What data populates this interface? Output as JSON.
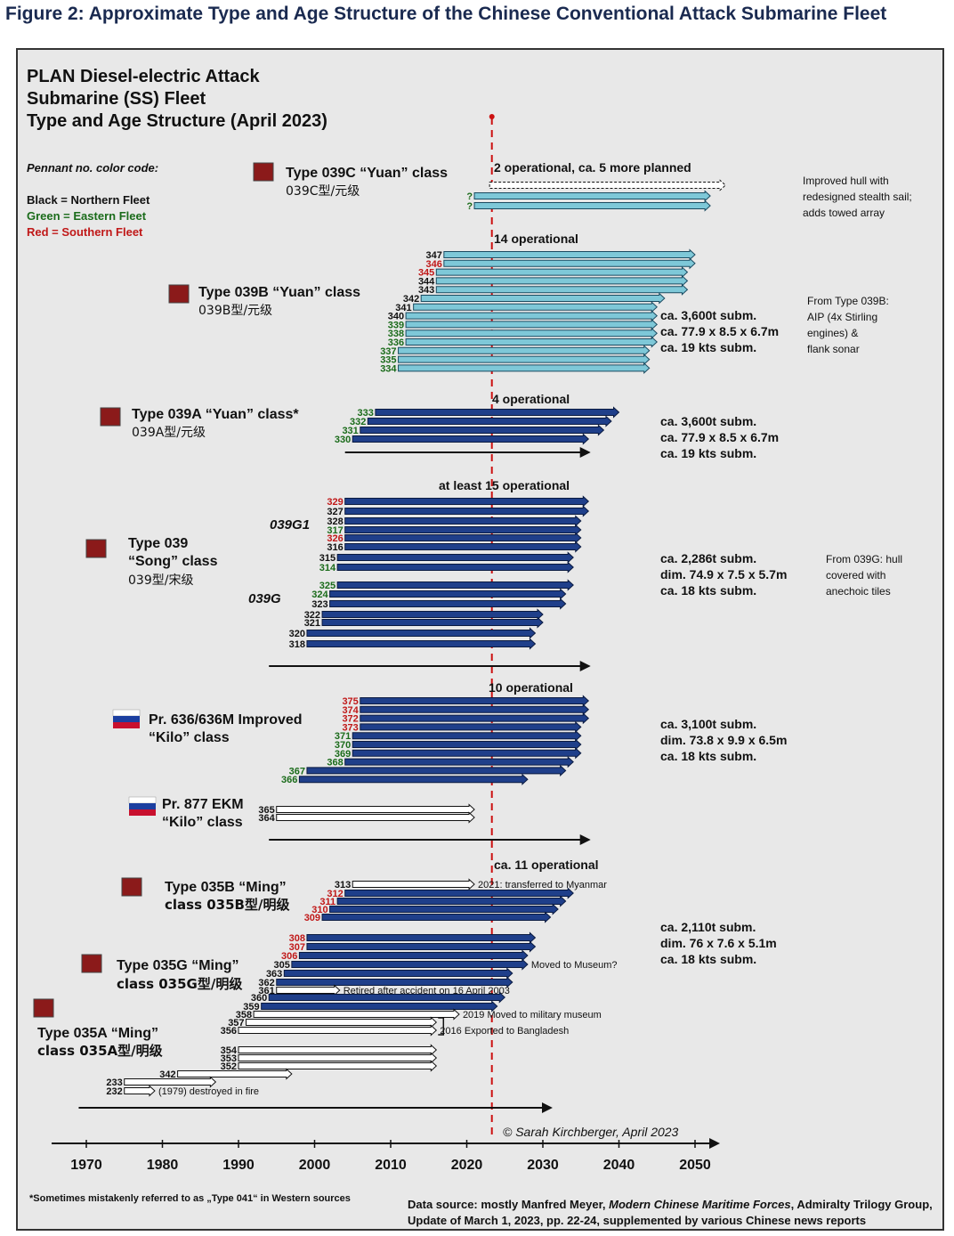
{
  "figure_title": "Figure 2: Approximate Type and Age Structure of the Chinese Conventional Attack Submarine Fleet",
  "chart_title": [
    "PLAN Diesel-electric Attack",
    "Submarine (SS) Fleet",
    "Type and Age Structure (April 2023)"
  ],
  "legend": {
    "heading": "Pennant no. color code:",
    "items": [
      {
        "label": "Black = Northern Fleet",
        "color": "#111111"
      },
      {
        "label": "Green = Eastern Fleet",
        "color": "#1a6b1a"
      },
      {
        "label": "Red = Southern Fleet",
        "color": "#c01818"
      }
    ]
  },
  "colors": {
    "northern": "#111111",
    "eastern": "#1a6b1a",
    "southern": "#c01818",
    "light_bar": "#7ec8d8",
    "dark_bar": "#1f3f8a",
    "mid_bar": "#2a5aa8",
    "now_line": "#cc1111"
  },
  "chart_data": {
    "type": "timeline",
    "xlim": [
      1965,
      2052
    ],
    "x_ticks": [
      1970,
      1980,
      1990,
      2000,
      2010,
      2020,
      2030,
      2040,
      2050
    ],
    "now_year": 2023.3,
    "groups": [
      {
        "id": "039c",
        "title": "Type 039C “Yuan” class",
        "subtitle": "039C型/元级",
        "flag": "cn",
        "status": "2 operational, ca. 5 more planned",
        "note": [
          "Improved hull with",
          "redesigned stealth sail;",
          "adds towed array"
        ],
        "specs": [],
        "bars": [
          {
            "label": "",
            "fleet": "n",
            "start": 2023,
            "end": 2054,
            "style": "dashed"
          },
          {
            "label": "?",
            "fleet": "e",
            "start": 2021,
            "end": 2052,
            "style": "light"
          },
          {
            "label": "?",
            "fleet": "e",
            "start": 2021,
            "end": 2052,
            "style": "light"
          }
        ]
      },
      {
        "id": "039b",
        "title": "Type 039B “Yuan” class",
        "subtitle": "039B型/元级",
        "flag": "cn",
        "status": "14 operational",
        "note": [
          "From Type 039B:",
          "AIP (4x Stirling",
          "engines) &",
          "flank sonar"
        ],
        "specs": [
          "ca. 3,600t subm.",
          "ca. 77.9 x 8.5 x 6.7m",
          "ca. 19 kts subm."
        ],
        "bars": [
          {
            "label": "347",
            "fleet": "n",
            "start": 2017,
            "end": 2050,
            "style": "light"
          },
          {
            "label": "346",
            "fleet": "s",
            "start": 2017,
            "end": 2050,
            "style": "light"
          },
          {
            "label": "345",
            "fleet": "s",
            "start": 2016,
            "end": 2049,
            "style": "light"
          },
          {
            "label": "344",
            "fleet": "n",
            "start": 2016,
            "end": 2049,
            "style": "light"
          },
          {
            "label": "343",
            "fleet": "n",
            "start": 2016,
            "end": 2049,
            "style": "light"
          },
          {
            "label": "342",
            "fleet": "n",
            "start": 2014,
            "end": 2046,
            "style": "light"
          },
          {
            "label": "341",
            "fleet": "n",
            "start": 2013,
            "end": 2045,
            "style": "light"
          },
          {
            "label": "340",
            "fleet": "n",
            "start": 2012,
            "end": 2045,
            "style": "light"
          },
          {
            "label": "339",
            "fleet": "e",
            "start": 2012,
            "end": 2045,
            "style": "light"
          },
          {
            "label": "338",
            "fleet": "e",
            "start": 2012,
            "end": 2045,
            "style": "light"
          },
          {
            "label": "336",
            "fleet": "e",
            "start": 2012,
            "end": 2045,
            "style": "light"
          },
          {
            "label": "337",
            "fleet": "e",
            "start": 2011,
            "end": 2044,
            "style": "light"
          },
          {
            "label": "335",
            "fleet": "e",
            "start": 2011,
            "end": 2044,
            "style": "light"
          },
          {
            "label": "334",
            "fleet": "e",
            "start": 2011,
            "end": 2044,
            "style": "light"
          }
        ]
      },
      {
        "id": "039a",
        "title": "Type 039A “Yuan” class*",
        "subtitle": "039A型/元级",
        "flag": "cn",
        "status": "4 operational",
        "note": [],
        "specs": [
          "ca. 3,600t subm.",
          "ca. 77.9 x 8.5 x 6.7m",
          "ca. 19 kts subm."
        ],
        "bars": [
          {
            "label": "333",
            "fleet": "e",
            "start": 2008,
            "end": 2040,
            "style": "dark"
          },
          {
            "label": "332",
            "fleet": "e",
            "start": 2007,
            "end": 2039,
            "style": "dark"
          },
          {
            "label": "331",
            "fleet": "e",
            "start": 2006,
            "end": 2038,
            "style": "dark"
          },
          {
            "label": "330",
            "fleet": "e",
            "start": 2005,
            "end": 2036,
            "style": "dark"
          }
        ],
        "axis": {
          "start": 2004,
          "end": 2036
        }
      },
      {
        "id": "039",
        "title_lines": [
          "Type 039",
          "“Song” class"
        ],
        "subtitle": "039型/宋级",
        "flag": "cn",
        "status": "at least 15 operational",
        "variant_labels": [
          "039G1",
          "039G"
        ],
        "note": [
          "From 039G: hull",
          "covered with",
          "anechoic tiles"
        ],
        "specs": [
          "ca. 2,286t subm.",
          "dim. 74.9 x 7.5 x 5.7m",
          "ca. 18 kts subm."
        ],
        "bars": [
          {
            "label": "329",
            "fleet": "s",
            "start": 2004,
            "end": 2036,
            "style": "dark"
          },
          {
            "label": "327",
            "fleet": "n",
            "start": 2004,
            "end": 2036,
            "style": "dark"
          },
          {
            "label": "328",
            "fleet": "n",
            "start": 2004,
            "end": 2035,
            "style": "dark"
          },
          {
            "label": "317",
            "fleet": "e",
            "start": 2004,
            "end": 2035,
            "style": "dark"
          },
          {
            "label": "326",
            "fleet": "s",
            "start": 2004,
            "end": 2035,
            "style": "dark"
          },
          {
            "label": "316",
            "fleet": "n",
            "start": 2004,
            "end": 2035,
            "style": "dark"
          },
          {
            "label": "315",
            "fleet": "n",
            "start": 2003,
            "end": 2034,
            "style": "dark"
          },
          {
            "label": "314",
            "fleet": "e",
            "start": 2003,
            "end": 2034,
            "style": "dark"
          },
          {
            "label": "325",
            "fleet": "e",
            "start": 2003,
            "end": 2034,
            "style": "dark"
          },
          {
            "label": "324",
            "fleet": "e",
            "start": 2002,
            "end": 2033,
            "style": "dark"
          },
          {
            "label": "323",
            "fleet": "n",
            "start": 2002,
            "end": 2033,
            "style": "dark"
          },
          {
            "label": "322",
            "fleet": "n",
            "start": 2001,
            "end": 2030,
            "style": "dark"
          },
          {
            "label": "321",
            "fleet": "n",
            "start": 2001,
            "end": 2030,
            "style": "dark"
          },
          {
            "label": "320",
            "fleet": "n",
            "start": 1999,
            "end": 2029,
            "style": "dark"
          },
          {
            "label": "318",
            "fleet": "n",
            "start": 1999,
            "end": 2029,
            "style": "dark"
          }
        ],
        "axis": {
          "start": 1994,
          "end": 2036
        }
      },
      {
        "id": "636",
        "title_lines": [
          "Pr. 636/636M Improved",
          "“Kilo” class"
        ],
        "subtitle": "",
        "flag": "ru",
        "status": "10 operational",
        "note": [],
        "specs": [
          "ca. 3,100t subm.",
          "dim. 73.8 x 9.9 x 6.5m",
          "ca. 18 kts subm."
        ],
        "bars": [
          {
            "label": "375",
            "fleet": "s",
            "start": 2006,
            "end": 2036,
            "style": "dark"
          },
          {
            "label": "374",
            "fleet": "s",
            "start": 2006,
            "end": 2036,
            "style": "dark"
          },
          {
            "label": "372",
            "fleet": "s",
            "start": 2006,
            "end": 2036,
            "style": "dark"
          },
          {
            "label": "373",
            "fleet": "s",
            "start": 2006,
            "end": 2035,
            "style": "dark"
          },
          {
            "label": "371",
            "fleet": "e",
            "start": 2005,
            "end": 2035,
            "style": "dark"
          },
          {
            "label": "370",
            "fleet": "e",
            "start": 2005,
            "end": 2035,
            "style": "dark"
          },
          {
            "label": "369",
            "fleet": "e",
            "start": 2005,
            "end": 2035,
            "style": "dark"
          },
          {
            "label": "368",
            "fleet": "e",
            "start": 2004,
            "end": 2034,
            "style": "dark"
          },
          {
            "label": "367",
            "fleet": "e",
            "start": 1999,
            "end": 2033,
            "style": "dark"
          },
          {
            "label": "366",
            "fleet": "e",
            "start": 1998,
            "end": 2028,
            "style": "dark"
          }
        ]
      },
      {
        "id": "877",
        "title_lines": [
          "Pr. 877 EKM",
          "“Kilo” class"
        ],
        "subtitle": "",
        "flag": "ru",
        "status": "",
        "note": [],
        "specs": [],
        "bars": [
          {
            "label": "365",
            "fleet": "n",
            "start": 1995,
            "end": 2021,
            "style": "hollow"
          },
          {
            "label": "364",
            "fleet": "n",
            "start": 1995,
            "end": 2021,
            "style": "hollow"
          }
        ],
        "axis": {
          "start": 1994,
          "end": 2036
        }
      },
      {
        "id": "035",
        "status": "ca. 11 operational",
        "specs": [
          "ca. 2,110t subm.",
          "dim. 76 x 7.6 x 5.1m",
          "ca. 18 kts subm."
        ],
        "subgroups": [
          {
            "title": "Type 035B “Ming”",
            "subtitle_lines": [
              "class  035B型/明级"
            ],
            "flag": "cn"
          },
          {
            "title": "Type 035G “Ming”",
            "subtitle_lines": [
              "class  035G型/明级"
            ],
            "flag": "cn"
          },
          {
            "title": "Type 035A “Ming”",
            "subtitle_lines": [
              "class  035A型/明级"
            ],
            "flag": "cn"
          }
        ],
        "bars": [
          {
            "label": "313",
            "fleet": "n",
            "start": 2005,
            "end": 2021,
            "style": "hollow",
            "note": "2021: transferred to Myanmar"
          },
          {
            "label": "312",
            "fleet": "s",
            "start": 2004,
            "end": 2034,
            "style": "dark"
          },
          {
            "label": "311",
            "fleet": "s",
            "start": 2003,
            "end": 2033,
            "style": "dark"
          },
          {
            "label": "310",
            "fleet": "s",
            "start": 2002,
            "end": 2032,
            "style": "dark"
          },
          {
            "label": "309",
            "fleet": "s",
            "start": 2001,
            "end": 2031,
            "style": "dark"
          },
          {
            "label": "308",
            "fleet": "s",
            "start": 1999,
            "end": 2029,
            "style": "dark"
          },
          {
            "label": "307",
            "fleet": "s",
            "start": 1999,
            "end": 2029,
            "style": "dark"
          },
          {
            "label": "306",
            "fleet": "s",
            "start": 1998,
            "end": 2028,
            "style": "dark"
          },
          {
            "label": "305",
            "fleet": "n",
            "start": 1997,
            "end": 2028,
            "style": "dark",
            "note": "Moved to Museum?"
          },
          {
            "label": "363",
            "fleet": "n",
            "start": 1996,
            "end": 2026,
            "style": "dark"
          },
          {
            "label": "362",
            "fleet": "n",
            "start": 1995,
            "end": 2026,
            "style": "dark"
          },
          {
            "label": "361",
            "fleet": "n",
            "start": 1995,
            "end": 2003.3,
            "style": "hollow",
            "note": "Retired after accident on 16 April 2003"
          },
          {
            "label": "360",
            "fleet": "n",
            "start": 1994,
            "end": 2025,
            "style": "dark"
          },
          {
            "label": "359",
            "fleet": "n",
            "start": 1993,
            "end": 2024,
            "style": "dark"
          },
          {
            "label": "358",
            "fleet": "n",
            "start": 1992,
            "end": 2019,
            "style": "hollow",
            "note": "2019 Moved to military museum"
          },
          {
            "label": "357",
            "fleet": "n",
            "start": 1991,
            "end": 2016,
            "style": "hollow"
          },
          {
            "label": "356",
            "fleet": "n",
            "start": 1990,
            "end": 2016,
            "style": "hollow",
            "note": "2016 Exported to Bangladesh"
          },
          {
            "label": "354",
            "fleet": "n",
            "start": 1990,
            "end": 2016,
            "style": "hollow"
          },
          {
            "label": "353",
            "fleet": "n",
            "start": 1990,
            "end": 2016,
            "style": "hollow"
          },
          {
            "label": "352",
            "fleet": "n",
            "start": 1990,
            "end": 2016,
            "style": "hollow"
          },
          {
            "label": "342",
            "fleet": "n",
            "start": 1982,
            "end": 1997,
            "style": "hollow"
          },
          {
            "label": "233",
            "fleet": "n",
            "start": 1975,
            "end": 1987,
            "style": "hollow"
          },
          {
            "label": "232",
            "fleet": "n",
            "start": 1975,
            "end": 1979,
            "style": "hollow",
            "note": "(1979) destroyed in fire"
          }
        ],
        "axis": {
          "start": 1969,
          "end": 2031
        }
      }
    ]
  },
  "copyright": "© Sarah Kirchberger, April 2023",
  "footnote": "*Sometimes mistakenly referred to as „Type 041“ in Western sources",
  "source": {
    "prefix": "Data source: mostly Manfred Meyer, ",
    "title": "Modern Chinese Maritime Forces",
    "suffix": ", Admiralty Trilogy Group,",
    "line2": "Update of March 1, 2023, pp. 22-24, supplemented by various Chinese news reports"
  }
}
